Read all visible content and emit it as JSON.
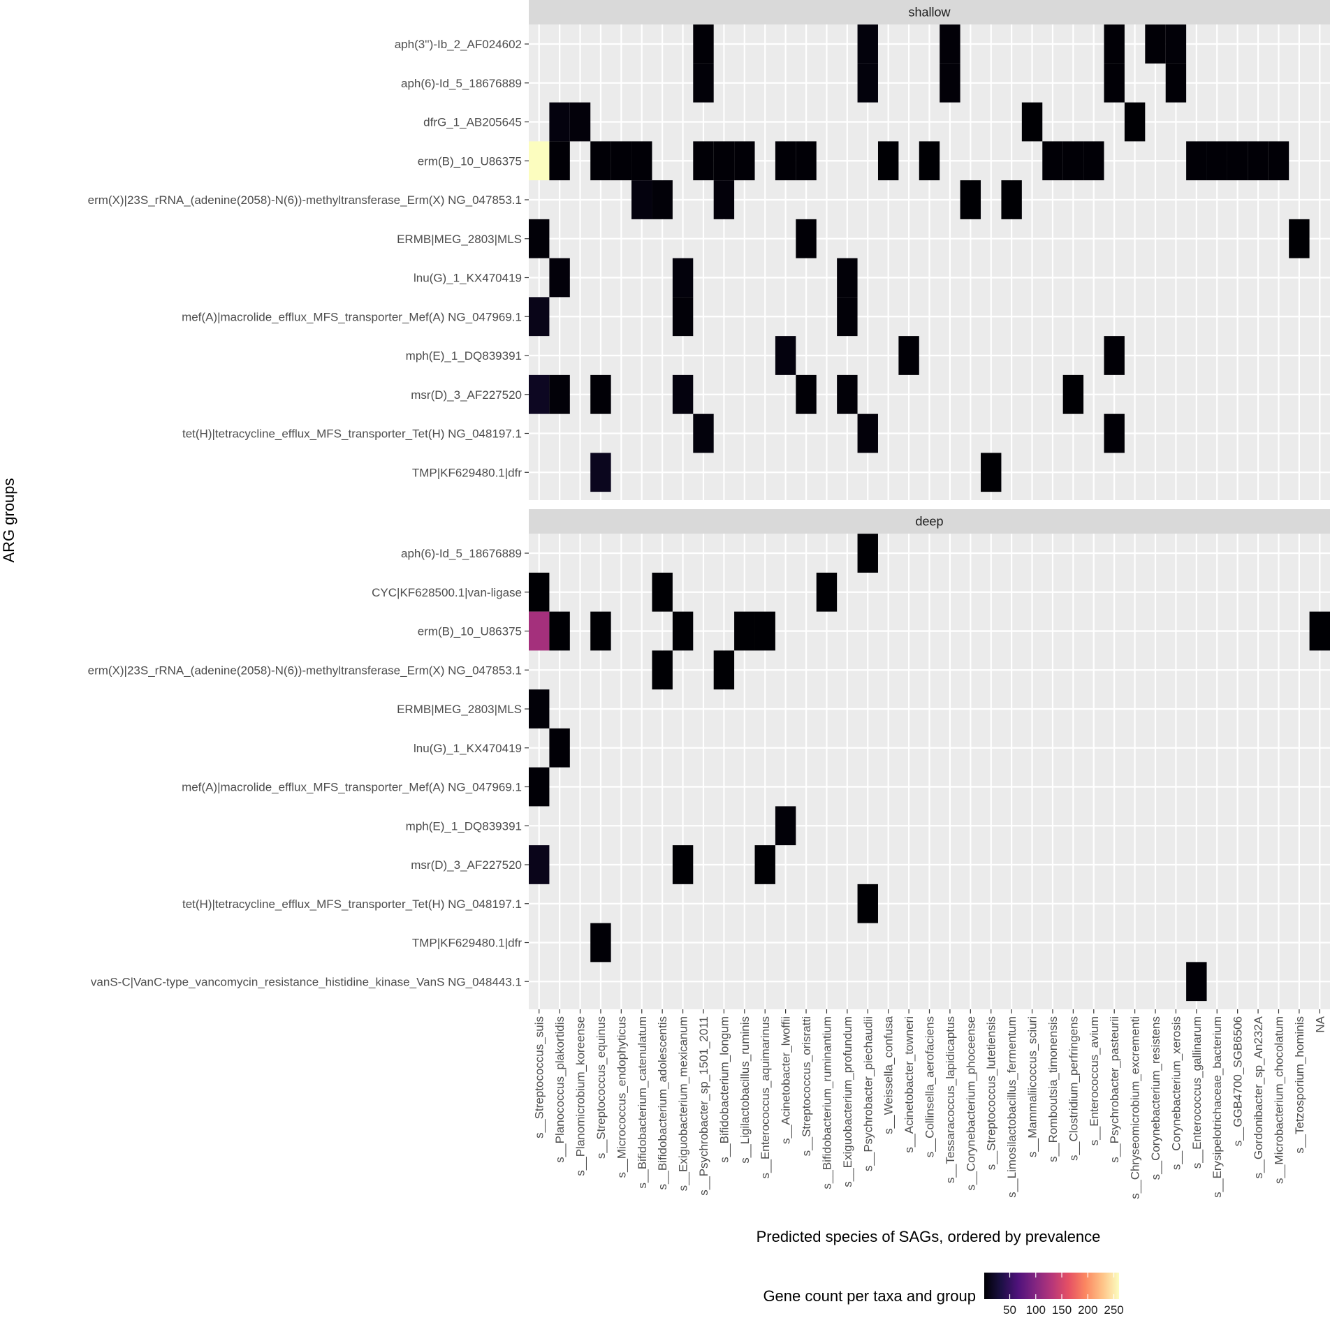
{
  "chart_data": {
    "type": "heatmap",
    "xlabel": "Predicted species of SAGs, ordered by prevalence",
    "ylabel": "ARG groups",
    "x_categories": [
      "s__Streptococcus_suis",
      "s__Planococcus_plakortidis",
      "s__Planomicrobium_koreense",
      "s__Streptococcus_equinus",
      "s__Micrococcus_endophyticus",
      "s__Bifidobacterium_catenulatum",
      "s__Bifidobacterium_adolescentis",
      "s__Exiguobacterium_mexicanum",
      "s__Psychrobacter_sp_1501_2011",
      "s__Bifidobacterium_longum",
      "s__Ligilactobacillus_ruminis",
      "s__Enterococcus_aquimarinus",
      "s__Acinetobacter_lwoffii",
      "s__Streptococcus_orisratti",
      "s__Bifidobacterium_ruminantium",
      "s__Exiguobacterium_profundum",
      "s__Psychrobacter_piechaudii",
      "s__Weissella_confusa",
      "s__Acinetobacter_towneri",
      "s__Collinsella_aerofaciens",
      "s__Tessaracoccus_lapidicaptus",
      "s__Corynebacterium_phoceense",
      "s__Streptococcus_lutetiensis",
      "s__Limosilactobacillus_fermentum",
      "s__Mammaliicoccus_sciuri",
      "s__Romboutsia_timonensis",
      "s__Clostridium_perfringens",
      "s__Enterococcus_avium",
      "s__Psychrobacter_pasteurii",
      "s__Chryseomicrobium_excrementi",
      "s__Corynebacterium_resistens",
      "s__Corynebacterium_xerosis",
      "s__Enterococcus_gallinarum",
      "s__Erysipelotrichaceae_bacterium",
      "s__GGB4700_SGB6506",
      "s__Gordonibacter_sp_An232A",
      "s__Microbacterium_chocolatum",
      "s__Tetzosporium_hominis",
      "NA"
    ],
    "fill_scale": {
      "title": "Gene count per taxa and group",
      "palette": "magma",
      "min": 1,
      "max": 260,
      "breaks": [
        50,
        100,
        150,
        200,
        250
      ],
      "colors": [
        "#000004",
        "#1c1044",
        "#4f127b",
        "#812581",
        "#b5367a",
        "#e55064",
        "#fb8761",
        "#fec287",
        "#fcfdbf"
      ]
    },
    "panel_background": "#ebebeb",
    "grid_color": "#ffffff",
    "strip_background": "#d9d9d9",
    "panels": [
      {
        "name": "shallow",
        "rows": [
          "aph(3'')-Ib_2_AF024602",
          "aph(6)-Id_5_18676889",
          "dfrG_1_AB205645",
          "erm(B)_10_U86375",
          "erm(X)|23S_rRNA_(adenine(2058)-N(6))-methyltransferase_Erm(X) NG_047853.1",
          "ERMB|MEG_2803|MLS",
          "lnu(G)_1_KX470419",
          "mef(A)|macrolide_efflux_MFS_transporter_Mef(A) NG_047969.1",
          "mph(E)_1_DQ839391",
          "msr(D)_3_AF227520",
          "tet(H)|tetracycline_efflux_MFS_transporter_Tet(H) NG_048197.1",
          "TMP|KF629480.1|dfr"
        ],
        "cells": [
          [
            0,
            8,
            2
          ],
          [
            0,
            16,
            5
          ],
          [
            0,
            20,
            3
          ],
          [
            0,
            28,
            2
          ],
          [
            0,
            30,
            2
          ],
          [
            0,
            31,
            3
          ],
          [
            1,
            8,
            3
          ],
          [
            1,
            16,
            5
          ],
          [
            1,
            20,
            3
          ],
          [
            1,
            28,
            2
          ],
          [
            1,
            31,
            2
          ],
          [
            2,
            1,
            6
          ],
          [
            2,
            2,
            4
          ],
          [
            2,
            24,
            1
          ],
          [
            2,
            29,
            1
          ],
          [
            3,
            0,
            260
          ],
          [
            3,
            1,
            2
          ],
          [
            3,
            3,
            2
          ],
          [
            3,
            4,
            2
          ],
          [
            3,
            5,
            2
          ],
          [
            3,
            8,
            2
          ],
          [
            3,
            9,
            2
          ],
          [
            3,
            10,
            2
          ],
          [
            3,
            12,
            2
          ],
          [
            3,
            13,
            2
          ],
          [
            3,
            17,
            1
          ],
          [
            3,
            19,
            1
          ],
          [
            3,
            25,
            2
          ],
          [
            3,
            26,
            2
          ],
          [
            3,
            27,
            2
          ],
          [
            3,
            32,
            2
          ],
          [
            3,
            33,
            2
          ],
          [
            3,
            34,
            2
          ],
          [
            3,
            35,
            2
          ],
          [
            3,
            36,
            2
          ],
          [
            4,
            5,
            6
          ],
          [
            4,
            6,
            3
          ],
          [
            4,
            9,
            4
          ],
          [
            4,
            21,
            1
          ],
          [
            4,
            23,
            1
          ],
          [
            5,
            0,
            3
          ],
          [
            5,
            13,
            2
          ],
          [
            5,
            37,
            1
          ],
          [
            6,
            1,
            4
          ],
          [
            6,
            7,
            5
          ],
          [
            6,
            15,
            3
          ],
          [
            7,
            0,
            11
          ],
          [
            7,
            7,
            3
          ],
          [
            7,
            15,
            3
          ],
          [
            8,
            12,
            6
          ],
          [
            8,
            18,
            2
          ],
          [
            8,
            28,
            2
          ],
          [
            9,
            0,
            16
          ],
          [
            9,
            1,
            3
          ],
          [
            9,
            3,
            2
          ],
          [
            9,
            7,
            6
          ],
          [
            9,
            13,
            2
          ],
          [
            9,
            15,
            3
          ],
          [
            9,
            26,
            1
          ],
          [
            10,
            8,
            5
          ],
          [
            10,
            16,
            4
          ],
          [
            10,
            28,
            2
          ],
          [
            11,
            3,
            14
          ],
          [
            11,
            22,
            1
          ]
        ]
      },
      {
        "name": "deep",
        "rows": [
          "aph(6)-Id_5_18676889",
          "CYC|KF628500.1|van-ligase",
          "erm(B)_10_U86375",
          "erm(X)|23S_rRNA_(adenine(2058)-N(6))-methyltransferase_Erm(X) NG_047853.1",
          "ERMB|MEG_2803|MLS",
          "lnu(G)_1_KX470419",
          "mef(A)|macrolide_efflux_MFS_transporter_Mef(A) NG_047969.1",
          "mph(E)_1_DQ839391",
          "msr(D)_3_AF227520",
          "tet(H)|tetracycline_efflux_MFS_transporter_Tet(H) NG_048197.1",
          "TMP|KF629480.1|dfr",
          "vanS-C|VanC-type_vancomycin_resistance_histidine_kinase_VanS NG_048443.1"
        ],
        "cells": [
          [
            0,
            16,
            1
          ],
          [
            1,
            0,
            1
          ],
          [
            1,
            6,
            1
          ],
          [
            1,
            14,
            1
          ],
          [
            2,
            0,
            120
          ],
          [
            2,
            1,
            1
          ],
          [
            2,
            3,
            1
          ],
          [
            2,
            7,
            1
          ],
          [
            2,
            10,
            1
          ],
          [
            2,
            11,
            1
          ],
          [
            2,
            38,
            1
          ],
          [
            3,
            6,
            1
          ],
          [
            3,
            9,
            1
          ],
          [
            4,
            0,
            3
          ],
          [
            5,
            1,
            2
          ],
          [
            6,
            0,
            2
          ],
          [
            7,
            12,
            3
          ],
          [
            8,
            0,
            12
          ],
          [
            8,
            7,
            1
          ],
          [
            8,
            11,
            1
          ],
          [
            9,
            16,
            1
          ],
          [
            10,
            3,
            2
          ],
          [
            11,
            32,
            2
          ]
        ]
      }
    ]
  }
}
